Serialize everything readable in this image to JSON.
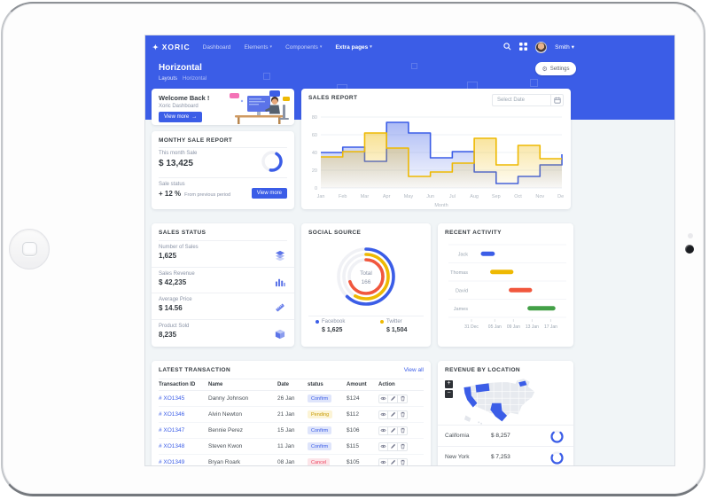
{
  "colors": {
    "primary": "#3b5de7",
    "yellow": "#eeb902",
    "red": "#f1573d",
    "green": "#43a047",
    "content_bg": "#f1f5f7"
  },
  "navbar": {
    "brand": "XORIC",
    "items": [
      {
        "label": "Dashboard",
        "caret": false,
        "active": false
      },
      {
        "label": "Elements",
        "caret": true,
        "active": false
      },
      {
        "label": "Components",
        "caret": true,
        "active": false
      },
      {
        "label": "Extra pages",
        "caret": true,
        "active": true
      }
    ],
    "icons": [
      "search-icon",
      "grid-icon"
    ],
    "user": "Smith"
  },
  "page_header": {
    "title": "Horizontal",
    "breadcrumb": [
      "Layouts",
      "Horizontal"
    ],
    "settings_label": "Settings"
  },
  "welcome": {
    "title": "Welcome Back !",
    "subtitle": "Xoric Dashboard",
    "button": "View more",
    "button_icon": "arrow-right-icon"
  },
  "monthly": {
    "title": "MONTHY SALE REPORT",
    "label": "This month Sale",
    "value": "$ 13,425",
    "progress_pct": 44,
    "status_label": "Sale status",
    "delta": "+ 12 %",
    "delta_note": "From previous period",
    "button": "View more"
  },
  "sales_report": {
    "title": "SALES REPORT",
    "date_placeholder": "Select Date",
    "date_icon": "calendar-icon"
  },
  "sales_status": {
    "title": "SALES STATUS",
    "rows": [
      {
        "label": "Number of Sales",
        "value": "1,625",
        "icon": "layers-icon"
      },
      {
        "label": "Sales Revenue",
        "value": "$ 42,235",
        "icon": "bar-chart-icon"
      },
      {
        "label": "Average Price",
        "value": "$ 14.56",
        "icon": "ruler-icon"
      },
      {
        "label": "Product Sold",
        "value": "8,235",
        "icon": "cube-icon"
      }
    ]
  },
  "social": {
    "title": "SOCIAL SOURCE",
    "total_label": "Total",
    "total_value": "166",
    "legend": [
      {
        "name": "Facebook",
        "value": "$ 1,625",
        "color": "#3b5de7"
      },
      {
        "name": "Twitter",
        "value": "$ 1,504",
        "color": "#eeb902"
      }
    ]
  },
  "recent": {
    "title": "RECENT ACTIVITY"
  },
  "transactions": {
    "title": "LATEST TRANSACTION",
    "view_all": "View all",
    "headers": [
      "Transaction ID",
      "Name",
      "Date",
      "status",
      "Amount",
      "Action"
    ],
    "action_icons": [
      "eye-icon",
      "pencil-icon",
      "trash-icon"
    ],
    "rows": [
      {
        "id": "# XO1345",
        "name": "Danny Johnson",
        "date": "26 Jan",
        "status": "Confirm",
        "status_type": "confirm",
        "amount": "$124"
      },
      {
        "id": "# XO1346",
        "name": "Alvin Newton",
        "date": "21 Jan",
        "status": "Pending",
        "status_type": "pending",
        "amount": "$112"
      },
      {
        "id": "# XO1347",
        "name": "Bennie Perez",
        "date": "15 Jan",
        "status": "Confirm",
        "status_type": "confirm",
        "amount": "$106"
      },
      {
        "id": "# XO1348",
        "name": "Steven Kwon",
        "date": "11 Jan",
        "status": "Confirm",
        "status_type": "confirm",
        "amount": "$115"
      },
      {
        "id": "# XO1349",
        "name": "Bryan Roark",
        "date": "08 Jan",
        "status": "Cancel",
        "status_type": "cancel",
        "amount": "$105"
      }
    ]
  },
  "revenue": {
    "title": "REVENUE BY LOCATION",
    "zoom_in": "+",
    "zoom_out": "−",
    "rows": [
      {
        "name": "California",
        "value": "$ 8,257",
        "pct": 78
      },
      {
        "name": "New York",
        "value": "$ 7,253",
        "pct": 72
      }
    ]
  },
  "chart_data": [
    {
      "type": "area",
      "subtype": "stepline",
      "title": "SALES REPORT",
      "xlabel": "Month",
      "ylim": [
        0,
        80
      ],
      "yticks": [
        0,
        20,
        40,
        60,
        80
      ],
      "categories": [
        "Jan",
        "Feb",
        "Mar",
        "Apr",
        "May",
        "Jun",
        "Jul",
        "Aug",
        "Sep",
        "Oct",
        "Nov",
        "Dec"
      ],
      "series": [
        {
          "name": "blue-series",
          "color": "#3b5de7",
          "values": [
            40,
            46,
            30,
            74,
            62,
            34,
            41,
            18,
            5,
            13,
            26,
            38
          ]
        },
        {
          "name": "yellow-series",
          "color": "#eeb902",
          "values": [
            35,
            41,
            62,
            45,
            13,
            18,
            28,
            56,
            26,
            48,
            33,
            33
          ]
        }
      ]
    },
    {
      "type": "radial",
      "title": "SOCIAL SOURCE",
      "total_label": "Total",
      "total": 166,
      "series": [
        {
          "name": "Facebook",
          "pct": 62,
          "color": "#3b5de7"
        },
        {
          "name": "Twitter",
          "pct": 58,
          "color": "#eeb902"
        },
        {
          "name": "Other",
          "pct": 70,
          "color": "#f1573d"
        }
      ]
    },
    {
      "type": "rangebar",
      "title": "RECENT ACTIVITY",
      "x_domain": [
        0,
        19
      ],
      "ticks": [
        {
          "label": "31 Dec",
          "day": 0
        },
        {
          "label": "05 Jan",
          "day": 5
        },
        {
          "label": "09 Jan",
          "day": 9
        },
        {
          "label": "13 Jan",
          "day": 13
        },
        {
          "label": "17 Jan",
          "day": 17
        }
      ],
      "series": [
        {
          "name": "Jack",
          "start": 2,
          "end": 5,
          "color": "#3b5de7"
        },
        {
          "name": "Thomas",
          "start": 4,
          "end": 9,
          "color": "#eeb902"
        },
        {
          "name": "David",
          "start": 8,
          "end": 13,
          "color": "#f1573d"
        },
        {
          "name": "James",
          "start": 12,
          "end": 18,
          "color": "#43a047"
        }
      ]
    }
  ]
}
